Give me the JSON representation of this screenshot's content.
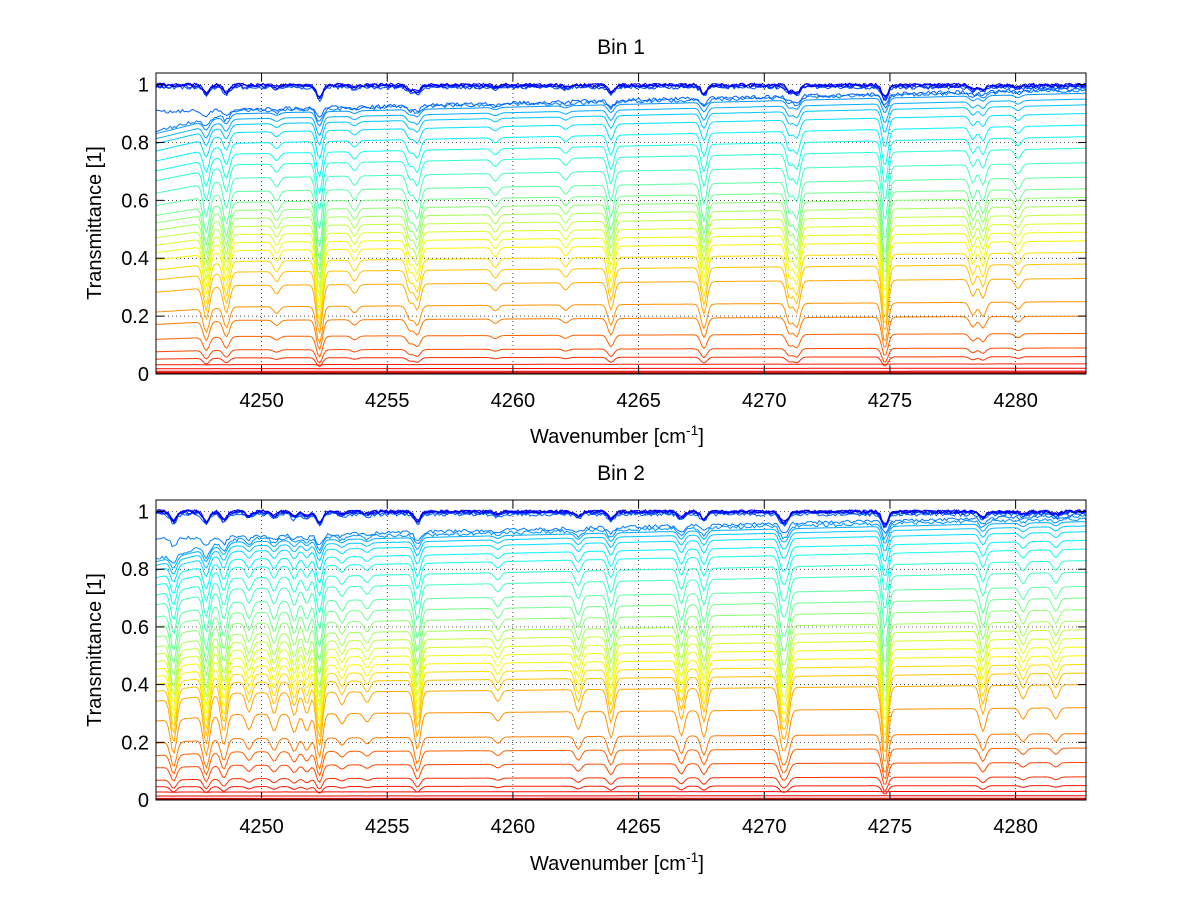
{
  "chart_data": [
    {
      "type": "line",
      "title": "Bin 1",
      "xlabel_main": "Wavenumber [cm",
      "xlabel_sup": "-1",
      "xlabel_end": "]",
      "ylabel": "Transmittance [1]",
      "xlim": [
        4245.8,
        4282.8
      ],
      "ylim": [
        0,
        1.04
      ],
      "xticks": [
        4250,
        4255,
        4260,
        4265,
        4270,
        4275,
        4280
      ],
      "yticks": [
        0,
        0.2,
        0.4,
        0.6,
        0.8,
        1
      ],
      "ytick_labels": [
        "0",
        "0.2",
        "0.4",
        "0.6",
        "0.8",
        "1"
      ],
      "grid": true,
      "colormap": "jet",
      "trace_baselines": [
        0.0,
        0.0,
        0.003,
        0.006,
        0.01,
        0.02,
        0.035,
        0.06,
        0.09,
        0.14,
        0.2,
        0.25,
        0.33,
        0.38,
        0.42,
        0.46,
        0.49,
        0.52,
        0.55,
        0.58,
        0.61,
        0.64,
        0.68,
        0.73,
        0.78,
        0.82,
        0.86,
        0.9,
        0.93,
        0.95,
        0.97,
        0.98,
        0.985,
        0.99,
        0.993,
        0.996,
        0.998,
        0.999
      ],
      "absorption_lines": [
        {
          "x": 4247.8,
          "depth": 0.35
        },
        {
          "x": 4248.6,
          "depth": 0.3
        },
        {
          "x": 4250.6,
          "depth": 0.1
        },
        {
          "x": 4252.3,
          "depth": 0.55
        },
        {
          "x": 4253.7,
          "depth": 0.1
        },
        {
          "x": 4255.9,
          "depth": 0.2
        },
        {
          "x": 4256.2,
          "depth": 0.28
        },
        {
          "x": 4259.3,
          "depth": 0.08
        },
        {
          "x": 4262.1,
          "depth": 0.08
        },
        {
          "x": 4263.9,
          "depth": 0.3
        },
        {
          "x": 4267.6,
          "depth": 0.35
        },
        {
          "x": 4271.0,
          "depth": 0.28
        },
        {
          "x": 4271.3,
          "depth": 0.33
        },
        {
          "x": 4274.8,
          "depth": 0.55
        },
        {
          "x": 4278.3,
          "depth": 0.18
        },
        {
          "x": 4278.7,
          "depth": 0.2
        },
        {
          "x": 4280.1,
          "depth": 0.1
        }
      ]
    },
    {
      "type": "line",
      "title": "Bin 2",
      "xlabel_main": "Wavenumber [cm",
      "xlabel_sup": "-1",
      "xlabel_end": "]",
      "ylabel": "Transmittance [1]",
      "xlim": [
        4245.8,
        4282.8
      ],
      "ylim": [
        0,
        1.04
      ],
      "xticks": [
        4250,
        4255,
        4260,
        4265,
        4270,
        4275,
        4280
      ],
      "yticks": [
        0,
        0.2,
        0.4,
        0.6,
        0.8,
        1
      ],
      "ytick_labels": [
        "0",
        "0.2",
        "0.4",
        "0.6",
        "0.8",
        "1"
      ],
      "grid": true,
      "colormap": "jet",
      "trace_baselines": [
        0.0,
        0.0,
        0.003,
        0.006,
        0.015,
        0.03,
        0.05,
        0.08,
        0.13,
        0.18,
        0.23,
        0.32,
        0.4,
        0.44,
        0.47,
        0.5,
        0.53,
        0.56,
        0.59,
        0.62,
        0.66,
        0.7,
        0.74,
        0.79,
        0.83,
        0.87,
        0.9,
        0.93,
        0.95,
        0.965,
        0.975,
        0.985,
        0.99,
        0.995,
        0.997,
        0.999,
        1.0,
        1.0
      ],
      "absorption_lines": [
        {
          "x": 4246.5,
          "depth": 0.4
        },
        {
          "x": 4247.8,
          "depth": 0.45
        },
        {
          "x": 4248.5,
          "depth": 0.35
        },
        {
          "x": 4249.5,
          "depth": 0.18
        },
        {
          "x": 4250.5,
          "depth": 0.2
        },
        {
          "x": 4251.3,
          "depth": 0.22
        },
        {
          "x": 4251.8,
          "depth": 0.2
        },
        {
          "x": 4252.3,
          "depth": 0.5
        },
        {
          "x": 4253.2,
          "depth": 0.12
        },
        {
          "x": 4254.2,
          "depth": 0.1
        },
        {
          "x": 4256.2,
          "depth": 0.42
        },
        {
          "x": 4259.4,
          "depth": 0.1
        },
        {
          "x": 4262.6,
          "depth": 0.2
        },
        {
          "x": 4263.9,
          "depth": 0.3
        },
        {
          "x": 4266.7,
          "depth": 0.28
        },
        {
          "x": 4267.6,
          "depth": 0.3
        },
        {
          "x": 4270.7,
          "depth": 0.35
        },
        {
          "x": 4270.9,
          "depth": 0.3
        },
        {
          "x": 4274.8,
          "depth": 0.6
        },
        {
          "x": 4278.7,
          "depth": 0.25
        },
        {
          "x": 4280.3,
          "depth": 0.12
        },
        {
          "x": 4281.6,
          "depth": 0.12
        }
      ]
    }
  ]
}
